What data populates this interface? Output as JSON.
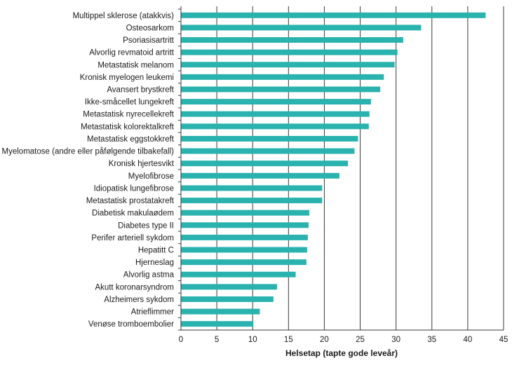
{
  "chart_data": {
    "type": "bar",
    "orientation": "horizontal",
    "categories": [
      "Multippel sklerose (atakkvis)",
      "Osteosarkom",
      "Psoriasisartritt",
      "Alvorlig revmatoid artritt",
      "Metastatisk melanom",
      "Kronisk myelogen leukemi",
      "Avansert brystkreft",
      "Ikke-småcellet lungekreft",
      "Metastatisk nyrecellekreft",
      "Metastatisk kolorektalkreft",
      "Metastatisk eggstokkreft",
      "Myelomatose (andre eller påfølgende tilbakefall)",
      "Kronisk hjertesvikt",
      "Myelofibrose",
      "Idiopatisk lungefibrose",
      "Metastatisk prostatakreft",
      "Diabetisk makulaødem",
      "Diabetes type II",
      "Perifer arteriell sykdom",
      "Hepatitt C",
      "Hjerneslag",
      "Alvorlig astma",
      "Akutt koronarsyndrom",
      "Alzheimers sykdom",
      "Atrieflimmer",
      "Venøse tromboembolier"
    ],
    "values": [
      42.5,
      33.5,
      31.0,
      30.2,
      29.8,
      28.3,
      27.8,
      26.5,
      26.3,
      26.2,
      24.7,
      24.2,
      23.3,
      22.1,
      19.7,
      19.7,
      17.9,
      17.8,
      17.7,
      17.6,
      17.5,
      16.0,
      13.4,
      12.9,
      11.0,
      10.1
    ],
    "xlabel": "Helsetap (tapte gode leveår)",
    "xlim": [
      0,
      45
    ],
    "xticks": [
      "0",
      "5",
      "10",
      "15",
      "20",
      "25",
      "30",
      "35",
      "40",
      "45"
    ],
    "grid": "vertical",
    "bar_color": "#2ab3ae",
    "grid_color": "#3a3a3a"
  }
}
